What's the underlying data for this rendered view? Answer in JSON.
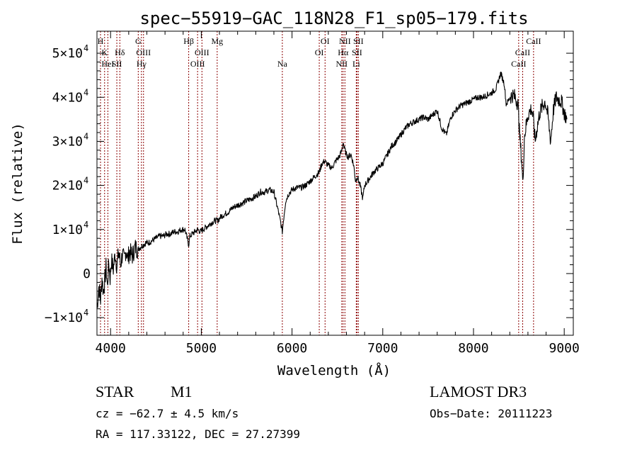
{
  "chart_data": {
    "type": "line",
    "title": "spec−55919−GAC_118N28_F1_sp05−179.fits",
    "xlabel": "Wavelength (Å)",
    "ylabel": "Flux (relative)",
    "xlim": [
      3850,
      9100
    ],
    "ylim": [
      -14000,
      55000
    ],
    "xticks": [
      4000,
      5000,
      6000,
      7000,
      8000,
      9000
    ],
    "xtick_labels": [
      "4000",
      "5000",
      "6000",
      "7000",
      "8000",
      "9000"
    ],
    "yticks": [
      {
        "value": -10000,
        "mant": "−1×10",
        "exp": "4"
      },
      {
        "value": 0,
        "mant": "0",
        "exp": ""
      },
      {
        "value": 10000,
        "mant": "1×10",
        "exp": "4"
      },
      {
        "value": 20000,
        "mant": "2×10",
        "exp": "4"
      },
      {
        "value": 30000,
        "mant": "3×10",
        "exp": "4"
      },
      {
        "value": 40000,
        "mant": "4×10",
        "exp": "4"
      },
      {
        "value": 50000,
        "mant": "5×10",
        "exp": "4"
      }
    ],
    "line_colors": {
      "spectrum": "#000000",
      "markers": "#8b0000"
    },
    "series": [
      {
        "x": [
          3850,
          3870,
          3890,
          3905,
          3920,
          3935,
          3950,
          3965,
          3980,
          3995,
          4010,
          4030,
          4050,
          4070,
          4090,
          4110,
          4130,
          4150,
          4170,
          4190,
          4210,
          4240,
          4270,
          4300,
          4330,
          4360,
          4390,
          4420,
          4460,
          4500,
          4540,
          4580,
          4620,
          4660,
          4700,
          4740,
          4780,
          4820,
          4850,
          4861,
          4875,
          4900,
          4930,
          4960,
          4990,
          5020,
          5050,
          5080,
          5110,
          5150,
          5180,
          5220,
          5260,
          5300,
          5350,
          5400,
          5450,
          5500,
          5550,
          5600,
          5650,
          5700,
          5750,
          5800,
          5850,
          5880,
          5893,
          5905,
          5930,
          5960,
          6000,
          6050,
          6100,
          6150,
          6200,
          6250,
          6300,
          6330,
          6360,
          6400,
          6440,
          6480,
          6520,
          6550,
          6563,
          6575,
          6600,
          6620,
          6650,
          6680,
          6700,
          6720,
          6750,
          6780,
          6800,
          6850,
          6900,
          6950,
          7000,
          7050,
          7100,
          7150,
          7200,
          7250,
          7300,
          7350,
          7400,
          7450,
          7500,
          7550,
          7600,
          7650,
          7700,
          7750,
          7800,
          7850,
          7900,
          7950,
          8000,
          8050,
          8100,
          8150,
          8200,
          8250,
          8300,
          8340,
          8360,
          8380,
          8400,
          8430,
          8460,
          8490,
          8500,
          8510,
          8530,
          8545,
          8560,
          8600,
          8640,
          8660,
          8680,
          8700,
          8730,
          8760,
          8790,
          8820,
          8850,
          8880,
          8910,
          8940,
          8970,
          9000,
          9030
        ],
        "y": [
          -8000,
          -3000,
          -6000,
          -1000,
          -4000,
          -2000,
          1500,
          -3000,
          2500,
          -1000,
          3000,
          1000,
          4500,
          1500,
          5000,
          2000,
          4500,
          3000,
          5500,
          3500,
          5000,
          4000,
          6000,
          5500,
          6000,
          6500,
          7000,
          7000,
          7500,
          8000,
          8500,
          8500,
          9000,
          9000,
          9500,
          9500,
          10000,
          10000,
          7500,
          6500,
          8500,
          9000,
          9500,
          10000,
          9500,
          10000,
          10500,
          11000,
          11500,
          12000,
          12000,
          13000,
          13500,
          14000,
          15000,
          15500,
          16000,
          16500,
          17000,
          17500,
          18500,
          18500,
          19000,
          18500,
          14000,
          11000,
          9500,
          12000,
          16500,
          18000,
          19000,
          19500,
          19500,
          20000,
          21000,
          22000,
          23000,
          25000,
          25500,
          24500,
          24000,
          25500,
          26500,
          28000,
          30000,
          28500,
          27000,
          26500,
          27000,
          24500,
          21000,
          22000,
          20000,
          17000,
          20000,
          21500,
          23000,
          24000,
          25000,
          27000,
          29000,
          30000,
          31500,
          33000,
          34000,
          34500,
          35000,
          35500,
          35000,
          36000,
          37000,
          33000,
          31500,
          35500,
          37000,
          38000,
          38500,
          39000,
          39500,
          40000,
          40000,
          40500,
          41000,
          42000,
          45500,
          43000,
          38500,
          39000,
          40000,
          40500,
          40000,
          38500,
          35000,
          31000,
          26000,
          20000,
          31000,
          36000,
          37500,
          35000,
          30000,
          33000,
          36500,
          38000,
          39000,
          36000,
          30000,
          37000,
          40000,
          39500,
          39000,
          36500,
          35000
        ]
      }
    ],
    "line_markers": [
      {
        "x": 3889,
        "label": "H",
        "row": 0
      },
      {
        "x": 3934,
        "label": "K",
        "row": 1
      },
      {
        "x": 3970,
        "label": "HeI",
        "row": 2
      },
      {
        "x": 4069,
        "label": "SII",
        "row": 2
      },
      {
        "x": 4102,
        "label": "Hδ",
        "row": 1
      },
      {
        "x": 4305,
        "label": "G",
        "row": 0
      },
      {
        "x": 4340,
        "label": "Hγ",
        "row": 2
      },
      {
        "x": 4363,
        "label": "OIII",
        "row": 1
      },
      {
        "x": 4861,
        "label": "Hβ",
        "row": 0
      },
      {
        "x": 4959,
        "label": "OIII",
        "row": 2
      },
      {
        "x": 5007,
        "label": "OIII",
        "row": 1
      },
      {
        "x": 5175,
        "label": "Mg",
        "row": 0
      },
      {
        "x": 5893,
        "label": "Na",
        "row": 2
      },
      {
        "x": 6300,
        "label": "OI",
        "row": 1
      },
      {
        "x": 6364,
        "label": "OI",
        "row": 0
      },
      {
        "x": 6548,
        "label": "NII",
        "row": 2
      },
      {
        "x": 6563,
        "label": "Hα",
        "row": 1
      },
      {
        "x": 6583,
        "label": "NII",
        "row": 0
      },
      {
        "x": 6708,
        "label": "Li",
        "row": 2
      },
      {
        "x": 6716,
        "label": "SII",
        "row": 1
      },
      {
        "x": 6731,
        "label": "SII",
        "row": 0
      },
      {
        "x": 8498,
        "label": "CaII",
        "row": 2
      },
      {
        "x": 8542,
        "label": "CaII",
        "row": 1
      },
      {
        "x": 8662,
        "label": "CaII",
        "row": 0
      }
    ]
  },
  "info": {
    "class": "STAR",
    "subclass": "M1",
    "survey": "LAMOST DR3",
    "cz": "cz = −62.7 ± 4.5 km/s",
    "obs_date": "Obs−Date: 20111223",
    "coords": "RA = 117.33122, DEC =  27.27399"
  }
}
